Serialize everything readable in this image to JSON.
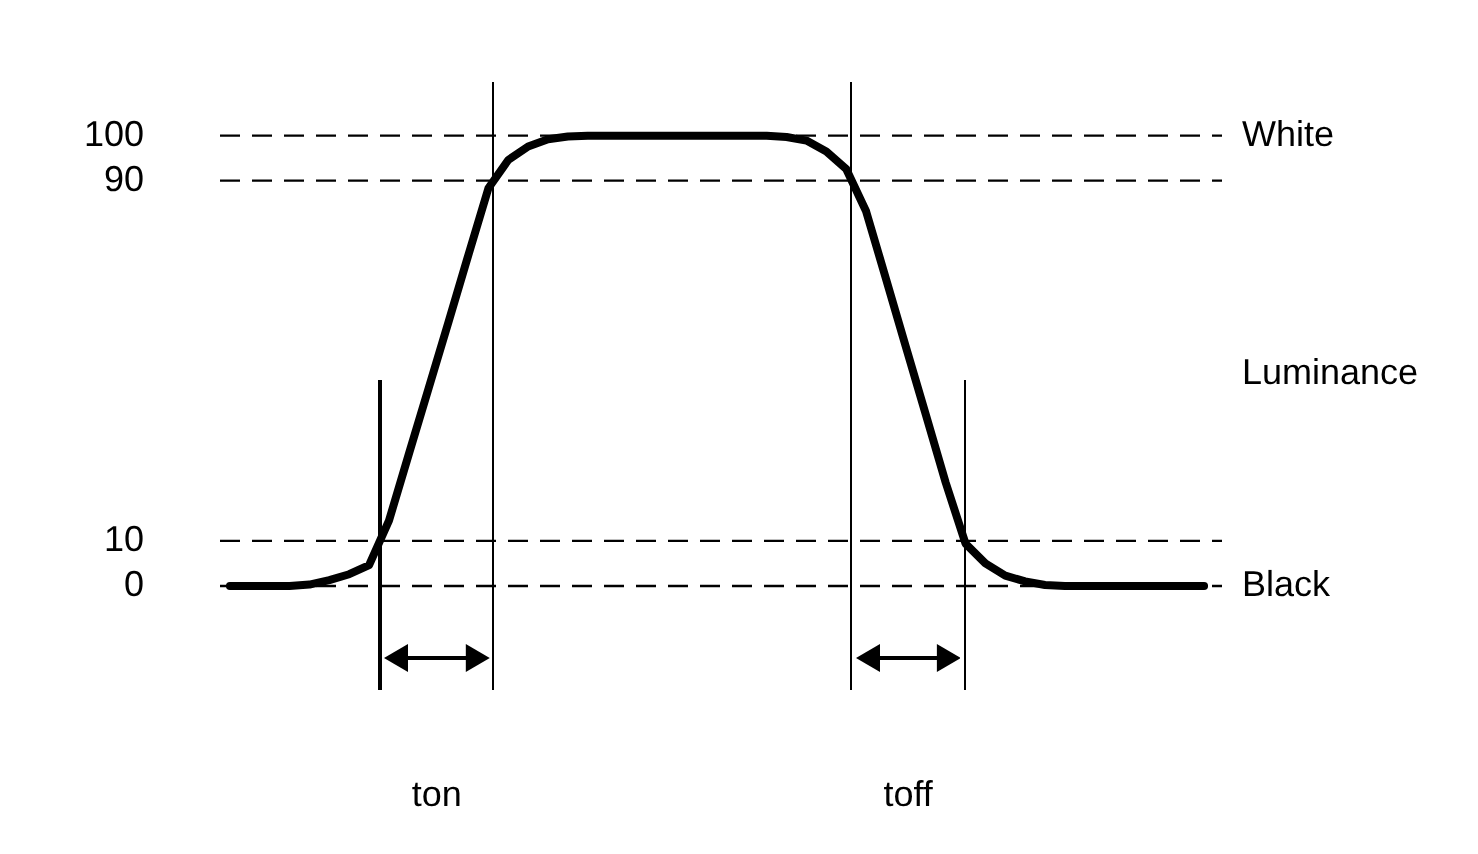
{
  "chart_data": {
    "type": "line",
    "ylim": [
      -24,
      112
    ],
    "yticks": [
      0,
      10,
      90,
      100
    ],
    "grid": false,
    "legend": false,
    "y2label": "Luminance",
    "categories": [
      null,
      null,
      null,
      null,
      null,
      null,
      null,
      null,
      null,
      null,
      null,
      null,
      null,
      null,
      null,
      null,
      null,
      null,
      null,
      null,
      null,
      null,
      null,
      null,
      null,
      null,
      null,
      null,
      null,
      null,
      null,
      null,
      null,
      null,
      null,
      null,
      null,
      null,
      null,
      null,
      null,
      null,
      null,
      null,
      null,
      null,
      null,
      null,
      null,
      null
    ],
    "series": [
      {
        "color": "#000000",
        "values": [
          0,
          0,
          0,
          0,
          0.3,
          1.3,
          2.6,
          4.6,
          14.5,
          29.3,
          44,
          58.7,
          73.6,
          88.3,
          94.6,
          97.6,
          99.2,
          99.8,
          100,
          100,
          100,
          100,
          100,
          100,
          100,
          100,
          100,
          100,
          99.7,
          98.9,
          96.5,
          92.6,
          83.2,
          68.2,
          53.1,
          38.1,
          23,
          9.4,
          5,
          2.3,
          1,
          0.2,
          0,
          0,
          0,
          0,
          0,
          0,
          0,
          0
        ]
      }
    ],
    "ref_lines": [
      {
        "axis": "y",
        "value": 100,
        "label": "White",
        "line_style": "dashed",
        "color": "#000000"
      },
      {
        "axis": "y",
        "value": 90,
        "line_style": "dashed",
        "color": "#000000"
      },
      {
        "axis": "y",
        "value": 10,
        "line_style": "dashed",
        "color": "#000000"
      },
      {
        "axis": "y",
        "value": 0,
        "label": "Black",
        "line_style": "dashed",
        "color": "#000000"
      }
    ],
    "annotations": [
      "ton",
      "toff"
    ]
  }
}
